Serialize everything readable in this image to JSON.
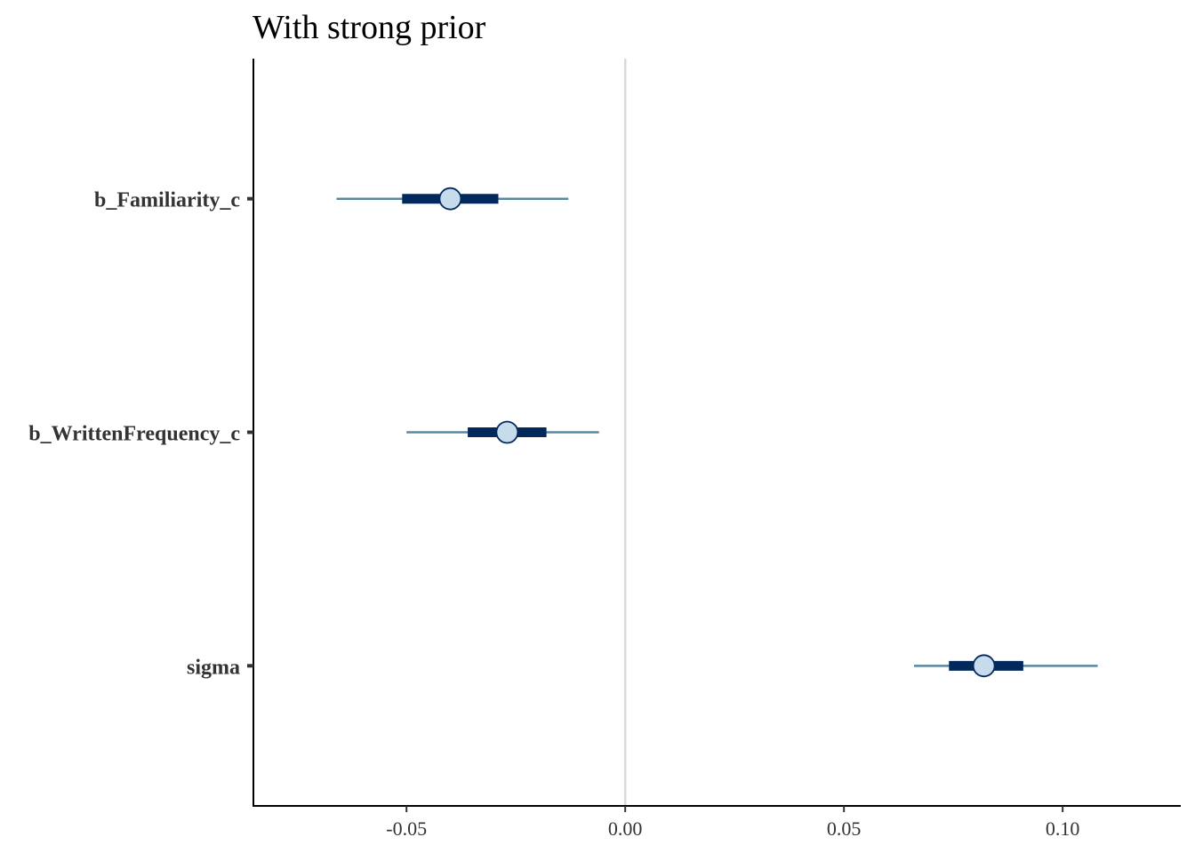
{
  "chart_data": {
    "type": "interval",
    "title": "With strong prior",
    "xlabel": "",
    "ylabel": "",
    "xlim": [
      -0.085,
      0.127
    ],
    "x_ticks": [
      -0.05,
      0.0,
      0.05,
      0.1
    ],
    "x_tick_labels": [
      "-0.05",
      "0.00",
      "0.05",
      "0.10"
    ],
    "reference_line": 0.0,
    "grid": false,
    "legend": "none",
    "parameters": [
      {
        "name": "b_Familiarity_c",
        "estimate": -0.04,
        "inner": [
          -0.051,
          -0.029
        ],
        "outer": [
          -0.066,
          -0.013
        ]
      },
      {
        "name": "b_WrittenFrequency_c",
        "estimate": -0.027,
        "inner": [
          -0.036,
          -0.018
        ],
        "outer": [
          -0.05,
          -0.006
        ]
      },
      {
        "name": "sigma",
        "estimate": 0.082,
        "inner": [
          0.074,
          0.091
        ],
        "outer": [
          0.066,
          0.108
        ]
      }
    ],
    "colors": {
      "outer_interval": "#5a88a2",
      "inner_interval": "#03295c",
      "point_fill": "#c6dbec",
      "point_stroke": "#03295c",
      "reference_line": "#d9d9d9",
      "axis": "#000000"
    }
  }
}
